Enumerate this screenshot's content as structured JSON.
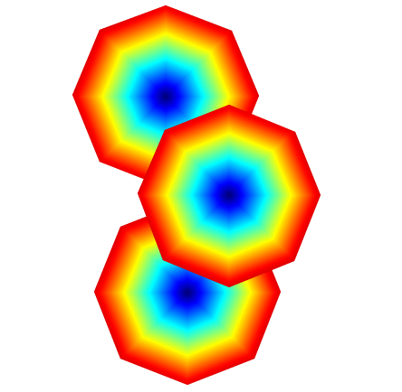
{
  "colors": {
    "background": "#ffffff",
    "jet_colormap": [
      "#00007f",
      "#0000ff",
      "#007fff",
      "#00ffff",
      "#7fff7f",
      "#ffff00",
      "#ff7f00",
      "#ff0000",
      "#bf0000"
    ]
  },
  "octagon_count": 3,
  "legend": null
}
